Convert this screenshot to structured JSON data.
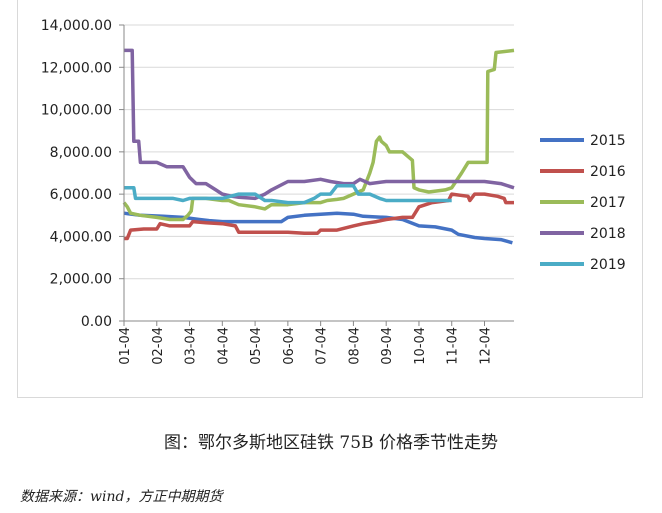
{
  "caption": "图：鄂尔多斯地区硅铁 75B 价格季节性走势",
  "source": "数据来源：wind，方正中期期货",
  "chart_data": {
    "type": "line",
    "ylim": [
      0,
      14000
    ],
    "yticks": [
      "0.00",
      "2,000.00",
      "4,000.00",
      "6,000.00",
      "8,000.00",
      "10,000.00",
      "12,000.00",
      "14,000.00"
    ],
    "xticks": [
      "01-04",
      "02-04",
      "03-04",
      "04-04",
      "05-04",
      "06-04",
      "07-04",
      "08-04",
      "09-04",
      "10-04",
      "11-04",
      "12-04"
    ],
    "xrange": [
      1,
      12.9
    ],
    "legend_position": "right",
    "series": [
      {
        "name": "2015",
        "color": "#4472c4",
        "points": [
          [
            1,
            5100
          ],
          [
            1.5,
            5000
          ],
          [
            2.2,
            4950
          ],
          [
            2.8,
            4900
          ],
          [
            3.3,
            4800
          ],
          [
            3.6,
            4750
          ],
          [
            4,
            4700
          ],
          [
            5,
            4700
          ],
          [
            5.8,
            4700
          ],
          [
            6,
            4900
          ],
          [
            6.5,
            5000
          ],
          [
            7,
            5050
          ],
          [
            7.5,
            5100
          ],
          [
            8,
            5050
          ],
          [
            8.3,
            4950
          ],
          [
            9,
            4900
          ],
          [
            9.5,
            4800
          ],
          [
            10,
            4500
          ],
          [
            10.5,
            4450
          ],
          [
            11,
            4300
          ],
          [
            11.2,
            4100
          ],
          [
            11.7,
            3950
          ],
          [
            12,
            3900
          ],
          [
            12.5,
            3850
          ],
          [
            12.85,
            3700
          ]
        ]
      },
      {
        "name": "2016",
        "color": "#c0504d",
        "points": [
          [
            1,
            3900
          ],
          [
            1.1,
            3900
          ],
          [
            1.2,
            4300
          ],
          [
            1.6,
            4350
          ],
          [
            2,
            4350
          ],
          [
            2.1,
            4600
          ],
          [
            2.4,
            4500
          ],
          [
            3,
            4500
          ],
          [
            3.1,
            4700
          ],
          [
            3.5,
            4650
          ],
          [
            4,
            4600
          ],
          [
            4.4,
            4500
          ],
          [
            4.5,
            4200
          ],
          [
            5,
            4200
          ],
          [
            6,
            4200
          ],
          [
            6.5,
            4150
          ],
          [
            6.9,
            4150
          ],
          [
            7,
            4300
          ],
          [
            7.5,
            4300
          ],
          [
            8,
            4500
          ],
          [
            8.3,
            4600
          ],
          [
            8.7,
            4700
          ],
          [
            9,
            4800
          ],
          [
            9.5,
            4900
          ],
          [
            9.8,
            4900
          ],
          [
            10,
            5400
          ],
          [
            10.4,
            5600
          ],
          [
            10.9,
            5700
          ],
          [
            11,
            6000
          ],
          [
            11.5,
            5900
          ],
          [
            11.55,
            5700
          ],
          [
            11.7,
            6000
          ],
          [
            12,
            6000
          ],
          [
            12.4,
            5900
          ],
          [
            12.6,
            5800
          ],
          [
            12.65,
            5600
          ],
          [
            12.9,
            5600
          ]
        ]
      },
      {
        "name": "2017",
        "color": "#9bbb59",
        "points": [
          [
            1,
            5600
          ],
          [
            1.1,
            5400
          ],
          [
            1.2,
            5100
          ],
          [
            1.5,
            5000
          ],
          [
            2,
            4900
          ],
          [
            2.4,
            4800
          ],
          [
            2.8,
            4800
          ],
          [
            2.95,
            5000
          ],
          [
            3.05,
            5200
          ],
          [
            3.1,
            5800
          ],
          [
            3.5,
            5800
          ],
          [
            4,
            5700
          ],
          [
            4.2,
            5700
          ],
          [
            4.5,
            5500
          ],
          [
            5,
            5400
          ],
          [
            5.3,
            5300
          ],
          [
            5.5,
            5500
          ],
          [
            6,
            5500
          ],
          [
            6.5,
            5600
          ],
          [
            7,
            5600
          ],
          [
            7.2,
            5700
          ],
          [
            7.5,
            5750
          ],
          [
            7.7,
            5800
          ],
          [
            8,
            6000
          ],
          [
            8.3,
            6200
          ],
          [
            8.5,
            7000
          ],
          [
            8.6,
            7500
          ],
          [
            8.7,
            8500
          ],
          [
            8.8,
            8700
          ],
          [
            8.85,
            8500
          ],
          [
            9,
            8300
          ],
          [
            9.1,
            8000
          ],
          [
            9.5,
            8000
          ],
          [
            9.8,
            7600
          ],
          [
            9.85,
            6300
          ],
          [
            10,
            6200
          ],
          [
            10.3,
            6100
          ],
          [
            10.8,
            6200
          ],
          [
            11,
            6300
          ],
          [
            11.3,
            7000
          ],
          [
            11.5,
            7500
          ],
          [
            12,
            7500
          ],
          [
            12.08,
            7500
          ],
          [
            12.1,
            11800
          ],
          [
            12.3,
            11900
          ],
          [
            12.35,
            12700
          ],
          [
            12.9,
            12800
          ]
        ]
      },
      {
        "name": "2018",
        "color": "#8064a2",
        "points": [
          [
            1,
            12800
          ],
          [
            1.25,
            12800
          ],
          [
            1.3,
            8500
          ],
          [
            1.45,
            8500
          ],
          [
            1.5,
            7500
          ],
          [
            2,
            7500
          ],
          [
            2.3,
            7300
          ],
          [
            2.8,
            7300
          ],
          [
            3,
            6800
          ],
          [
            3.2,
            6500
          ],
          [
            3.5,
            6500
          ],
          [
            3.8,
            6200
          ],
          [
            4,
            6000
          ],
          [
            4.3,
            5900
          ],
          [
            4.5,
            5850
          ],
          [
            5,
            5800
          ],
          [
            5.3,
            6000
          ],
          [
            5.5,
            6200
          ],
          [
            6,
            6600
          ],
          [
            6.5,
            6600
          ],
          [
            7,
            6700
          ],
          [
            7.3,
            6600
          ],
          [
            7.7,
            6500
          ],
          [
            8,
            6500
          ],
          [
            8.2,
            6700
          ],
          [
            8.5,
            6500
          ],
          [
            9,
            6600
          ],
          [
            10,
            6600
          ],
          [
            11,
            6600
          ],
          [
            12,
            6600
          ],
          [
            12.5,
            6500
          ],
          [
            12.9,
            6300
          ]
        ]
      },
      {
        "name": "2019",
        "color": "#4bacc6",
        "points": [
          [
            1,
            6300
          ],
          [
            1.3,
            6300
          ],
          [
            1.35,
            5800
          ],
          [
            2,
            5800
          ],
          [
            2.5,
            5800
          ],
          [
            2.8,
            5700
          ],
          [
            3,
            5800
          ],
          [
            3.5,
            5800
          ],
          [
            4,
            5800
          ],
          [
            4.5,
            6000
          ],
          [
            5,
            6000
          ],
          [
            5.3,
            5700
          ],
          [
            5.5,
            5700
          ],
          [
            6,
            5600
          ],
          [
            6.5,
            5600
          ],
          [
            6.8,
            5800
          ],
          [
            7,
            6000
          ],
          [
            7.3,
            6000
          ],
          [
            7.5,
            6400
          ],
          [
            8,
            6400
          ],
          [
            8.15,
            6000
          ],
          [
            8.5,
            6000
          ],
          [
            8.8,
            5800
          ],
          [
            9,
            5700
          ],
          [
            9.5,
            5700
          ],
          [
            10,
            5700
          ],
          [
            10.5,
            5700
          ],
          [
            11,
            5700
          ]
        ]
      }
    ]
  }
}
